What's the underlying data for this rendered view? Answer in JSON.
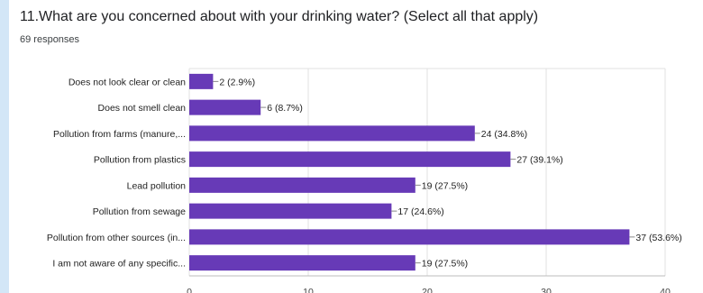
{
  "question": {
    "title": "11.What are you concerned about with your drinking water? (Select all that apply)",
    "responses": "69 responses"
  },
  "chart_data": {
    "type": "bar",
    "orientation": "horizontal",
    "categories": [
      "Does not look clear or clean",
      "Does not smell clean",
      "Pollution from farms (manure,...",
      "Pollution from plastics",
      "Lead pollution",
      "Pollution from sewage",
      "Pollution from other sources (in...",
      "I am not aware of any specific..."
    ],
    "values": [
      2,
      6,
      24,
      27,
      19,
      17,
      37,
      19
    ],
    "data_labels": [
      "2 (2.9%)",
      "6 (8.7%)",
      "24 (34.8%)",
      "27 (39.1%)",
      "19 (27.5%)",
      "17 (24.6%)",
      "37 (53.6%)",
      "19 (27.5%)"
    ],
    "xticks": [
      0,
      10,
      20,
      30,
      40
    ],
    "xlim": [
      0,
      40
    ],
    "grid": true,
    "bar_color": "#673ab7"
  }
}
